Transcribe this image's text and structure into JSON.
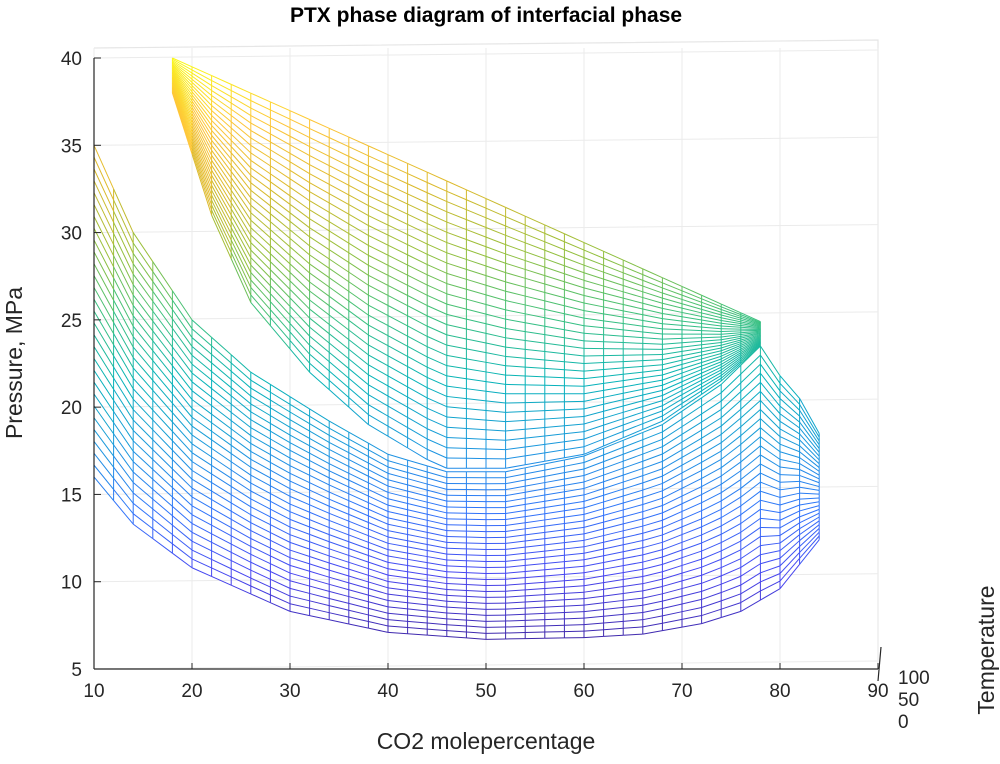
{
  "chart_data": {
    "type": "mesh3d",
    "title": "PTX phase diagram of interfacial phase",
    "xlabel": "CO2 molepercentage",
    "ylabel": "Pressure,  MPa",
    "zlabel": "Temperature",
    "xlim": [
      10,
      90
    ],
    "ylim": [
      5,
      40
    ],
    "x_ticks": [
      "10",
      "20",
      "30",
      "40",
      "50",
      "60",
      "70",
      "80",
      "90"
    ],
    "y_ticks": [
      "5",
      "10",
      "15",
      "20",
      "25",
      "30",
      "35",
      "40"
    ],
    "z_ticks": [
      "0",
      "50",
      "100"
    ],
    "grid": true,
    "colormap": [
      "#3e26a8",
      "#4745f1",
      "#2f74fa",
      "#1a98dd",
      "#05b3b8",
      "#3ac07d",
      "#95bf3a",
      "#dbb92a",
      "#fec538",
      "#f9fb15"
    ],
    "surfaces": [
      {
        "bottom": [
          [
            10,
            16
          ],
          [
            14,
            13.3
          ],
          [
            20,
            10.8
          ],
          [
            30,
            8.3
          ],
          [
            40,
            7.1
          ],
          [
            50,
            6.7
          ],
          [
            60,
            6.8
          ],
          [
            66,
            7.0
          ],
          [
            72,
            7.6
          ],
          [
            76,
            8.3
          ],
          [
            80,
            9.6
          ],
          [
            84,
            12.4
          ]
        ],
        "top": [
          [
            10,
            35
          ],
          [
            14,
            30
          ],
          [
            20,
            25
          ],
          [
            26,
            22
          ],
          [
            34,
            19.2
          ],
          [
            40,
            17.3
          ],
          [
            46,
            16.3
          ],
          [
            52,
            16.3
          ],
          [
            60,
            17.2
          ],
          [
            68,
            19
          ],
          [
            74,
            21.3
          ],
          [
            78,
            23.5
          ],
          [
            80,
            21.8
          ],
          [
            82,
            20.5
          ],
          [
            84,
            18.5
          ]
        ]
      },
      {
        "bottom": [
          [
            18,
            38
          ],
          [
            22,
            31
          ],
          [
            26,
            26
          ],
          [
            32,
            22
          ],
          [
            38,
            19
          ],
          [
            44,
            17
          ],
          [
            46,
            16.5
          ],
          [
            52,
            16.5
          ],
          [
            60,
            17.3
          ],
          [
            68,
            19.2
          ],
          [
            74,
            21.5
          ],
          [
            78,
            23.5
          ]
        ],
        "top": [
          [
            18,
            40
          ],
          [
            78,
            24.9
          ]
        ]
      }
    ]
  }
}
